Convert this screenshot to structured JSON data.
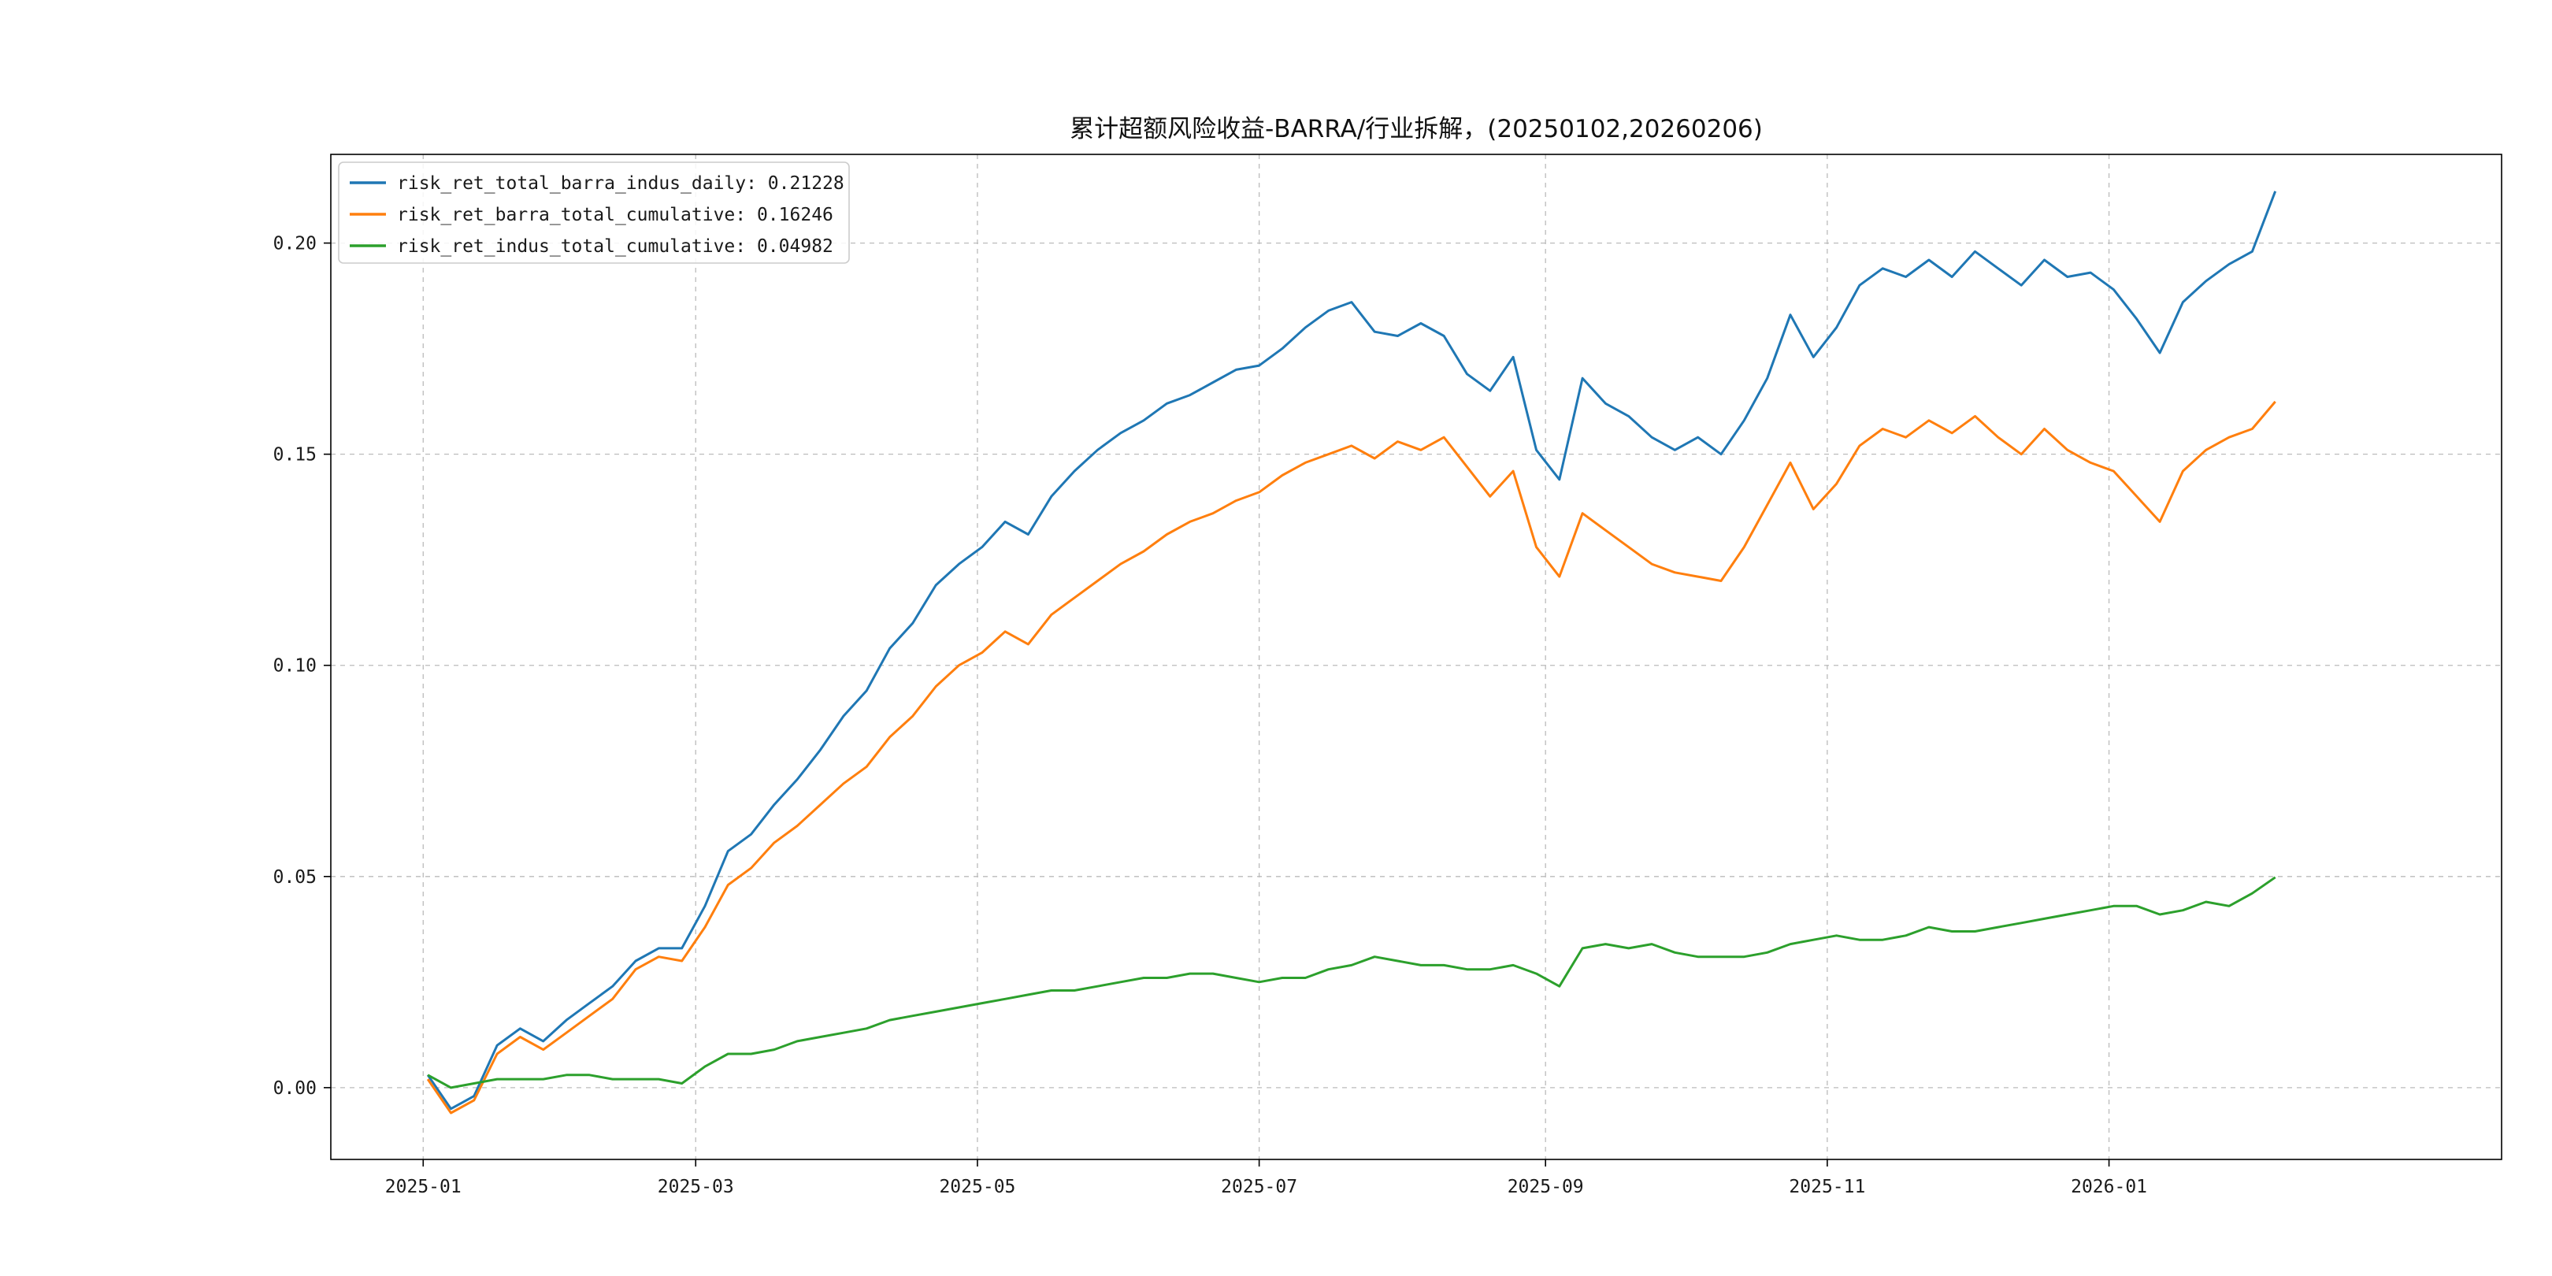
{
  "title": "累计超额风险收益-BARRA/行业拆解，(20250102,20260206)",
  "chart_data": {
    "type": "line",
    "title": "累计超额风险收益-BARRA/行业拆解，(20250102,20260206)",
    "date_range": [
      "20250102",
      "20260206"
    ],
    "x_unit": "days since 2025-01-01",
    "xlim": [
      -20,
      450
    ],
    "ylim": [
      -0.017,
      0.221
    ],
    "grid": "dashed",
    "legend_position": "upper-left",
    "x_ticks": [
      {
        "day": 0,
        "label": "2025-01"
      },
      {
        "day": 59,
        "label": "2025-03"
      },
      {
        "day": 120,
        "label": "2025-05"
      },
      {
        "day": 181,
        "label": "2025-07"
      },
      {
        "day": 243,
        "label": "2025-09"
      },
      {
        "day": 304,
        "label": "2025-11"
      },
      {
        "day": 365,
        "label": "2026-01"
      }
    ],
    "y_ticks": [
      {
        "value": 0.0,
        "label": "0.00"
      },
      {
        "value": 0.05,
        "label": "0.05"
      },
      {
        "value": 0.1,
        "label": "0.10"
      },
      {
        "value": 0.15,
        "label": "0.15"
      },
      {
        "value": 0.2,
        "label": "0.20"
      }
    ],
    "x": [
      1,
      6,
      11,
      16,
      21,
      26,
      31,
      36,
      41,
      46,
      51,
      56,
      61,
      66,
      71,
      76,
      81,
      86,
      91,
      96,
      101,
      106,
      111,
      116,
      121,
      126,
      131,
      136,
      141,
      146,
      151,
      156,
      161,
      166,
      171,
      176,
      181,
      186,
      191,
      196,
      201,
      206,
      211,
      216,
      221,
      226,
      231,
      236,
      241,
      246,
      251,
      256,
      261,
      266,
      271,
      276,
      281,
      286,
      291,
      296,
      301,
      306,
      311,
      316,
      321,
      326,
      331,
      336,
      341,
      346,
      351,
      356,
      361,
      366,
      371,
      376,
      381,
      386,
      391,
      396,
      401
    ],
    "series": [
      {
        "name": "risk_ret_total_barra_indus_daily",
        "legend": "risk_ret_total_barra_indus_daily: 0.21228",
        "final_value": 0.21228,
        "color": "#1f77b4",
        "values": [
          0.003,
          -0.005,
          -0.002,
          0.01,
          0.014,
          0.011,
          0.016,
          0.02,
          0.024,
          0.03,
          0.033,
          0.033,
          0.043,
          0.056,
          0.06,
          0.067,
          0.073,
          0.08,
          0.088,
          0.094,
          0.104,
          0.11,
          0.119,
          0.124,
          0.128,
          0.134,
          0.131,
          0.14,
          0.146,
          0.151,
          0.155,
          0.158,
          0.162,
          0.164,
          0.167,
          0.17,
          0.171,
          0.175,
          0.18,
          0.184,
          0.186,
          0.179,
          0.178,
          0.181,
          0.178,
          0.169,
          0.165,
          0.173,
          0.151,
          0.144,
          0.168,
          0.162,
          0.159,
          0.154,
          0.151,
          0.154,
          0.15,
          0.158,
          0.168,
          0.183,
          0.173,
          0.18,
          0.19,
          0.194,
          0.192,
          0.196,
          0.192,
          0.198,
          0.194,
          0.19,
          0.196,
          0.192,
          0.193,
          0.189,
          0.182,
          0.174,
          0.186,
          0.191,
          0.195,
          0.198,
          0.21228
        ]
      },
      {
        "name": "risk_ret_barra_total_cumulative",
        "legend": "risk_ret_barra_total_cumulative: 0.16246",
        "final_value": 0.16246,
        "color": "#ff7f0e",
        "values": [
          0.002,
          -0.006,
          -0.003,
          0.008,
          0.012,
          0.009,
          0.013,
          0.017,
          0.021,
          0.028,
          0.031,
          0.03,
          0.038,
          0.048,
          0.052,
          0.058,
          0.062,
          0.067,
          0.072,
          0.076,
          0.083,
          0.088,
          0.095,
          0.1,
          0.103,
          0.108,
          0.105,
          0.112,
          0.116,
          0.12,
          0.124,
          0.127,
          0.131,
          0.134,
          0.136,
          0.139,
          0.141,
          0.145,
          0.148,
          0.15,
          0.152,
          0.149,
          0.153,
          0.151,
          0.154,
          0.147,
          0.14,
          0.146,
          0.128,
          0.121,
          0.136,
          0.132,
          0.128,
          0.124,
          0.122,
          0.121,
          0.12,
          0.128,
          0.138,
          0.148,
          0.137,
          0.143,
          0.152,
          0.156,
          0.154,
          0.158,
          0.155,
          0.159,
          0.154,
          0.15,
          0.156,
          0.151,
          0.148,
          0.146,
          0.14,
          0.134,
          0.146,
          0.151,
          0.154,
          0.156,
          0.16246
        ]
      },
      {
        "name": "risk_ret_indus_total_cumulative",
        "legend": "risk_ret_indus_total_cumulative: 0.04982",
        "final_value": 0.04982,
        "color": "#2ca02c",
        "values": [
          0.003,
          0.0,
          0.001,
          0.002,
          0.002,
          0.002,
          0.003,
          0.003,
          0.002,
          0.002,
          0.002,
          0.001,
          0.005,
          0.008,
          0.008,
          0.009,
          0.011,
          0.012,
          0.013,
          0.014,
          0.016,
          0.017,
          0.018,
          0.019,
          0.02,
          0.021,
          0.022,
          0.023,
          0.023,
          0.024,
          0.025,
          0.026,
          0.026,
          0.027,
          0.027,
          0.026,
          0.025,
          0.026,
          0.026,
          0.028,
          0.029,
          0.031,
          0.03,
          0.029,
          0.029,
          0.028,
          0.028,
          0.029,
          0.027,
          0.024,
          0.033,
          0.034,
          0.033,
          0.034,
          0.032,
          0.031,
          0.031,
          0.031,
          0.032,
          0.034,
          0.035,
          0.036,
          0.035,
          0.035,
          0.036,
          0.038,
          0.037,
          0.037,
          0.038,
          0.039,
          0.04,
          0.041,
          0.042,
          0.043,
          0.043,
          0.041,
          0.042,
          0.044,
          0.043,
          0.046,
          0.04982
        ]
      }
    ]
  }
}
